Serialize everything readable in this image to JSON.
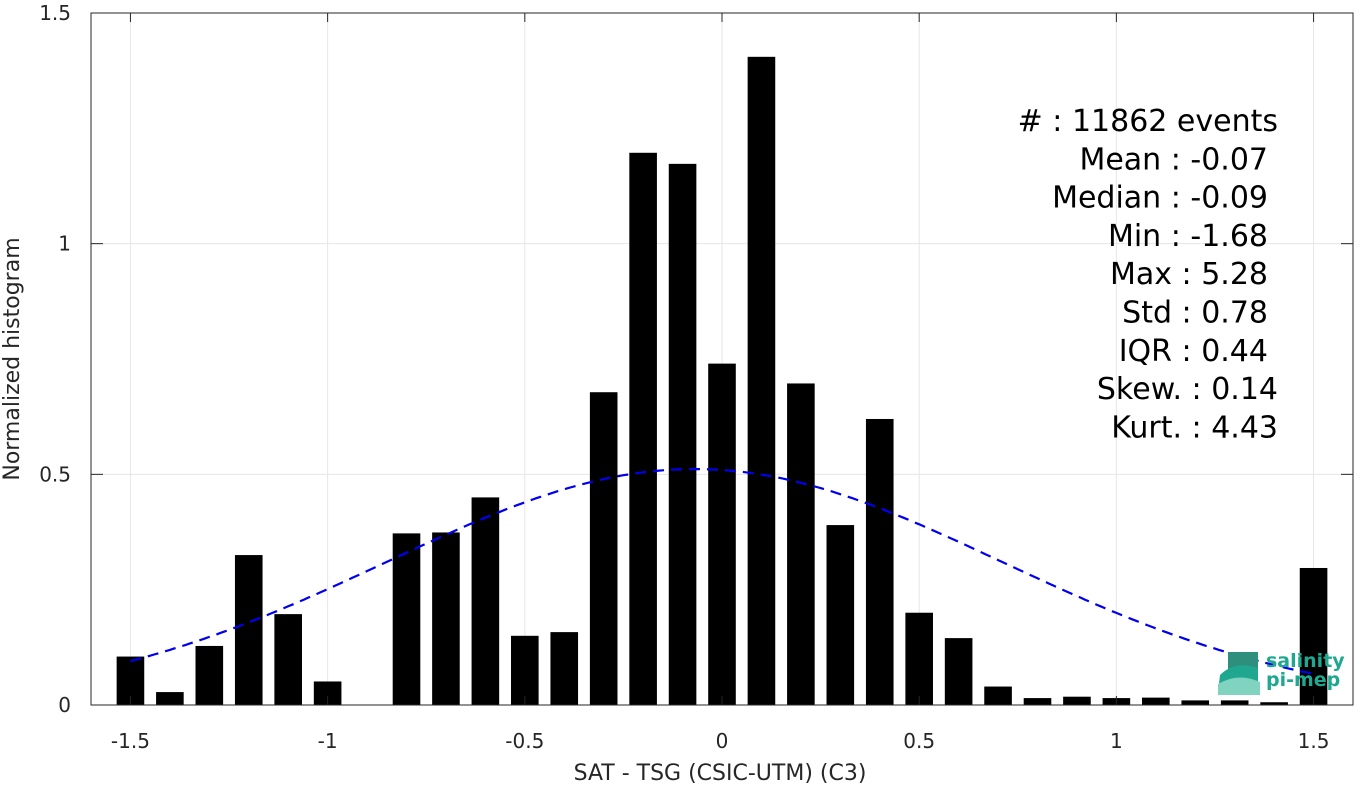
{
  "chart_data": {
    "type": "bar",
    "xlabel": "SAT - TSG (CSIC-UTM) (C3)",
    "ylabel": "Normalized histogram",
    "xlim": [
      -1.6,
      1.6
    ],
    "ylim": [
      0,
      1.5
    ],
    "xticks": [
      -1.5,
      -1,
      -0.5,
      0,
      0.5,
      1,
      1.5
    ],
    "xtick_labels": [
      "-1.5",
      "-1",
      "-0.5",
      "0",
      "0.5",
      "1",
      "1.5"
    ],
    "yticks": [
      0,
      0.5,
      1,
      1.5
    ],
    "ytick_labels": [
      "0",
      "0.5",
      "1",
      "1.5"
    ],
    "grid": true,
    "bar_color": "#000000",
    "bar_width": 0.07,
    "x": [
      -1.5,
      -1.4,
      -1.3,
      -1.2,
      -1.1,
      -1.0,
      -0.9,
      -0.8,
      -0.7,
      -0.6,
      -0.5,
      -0.4,
      -0.3,
      -0.2,
      -0.1,
      0.0,
      0.1,
      0.2,
      0.3,
      0.4,
      0.5,
      0.6,
      0.7,
      0.8,
      0.9,
      1.0,
      1.1,
      1.2,
      1.3,
      1.4,
      1.5
    ],
    "values": [
      0.105,
      0.028,
      0.128,
      0.325,
      0.197,
      0.051,
      0.0,
      0.372,
      0.374,
      0.45,
      0.15,
      0.158,
      0.678,
      1.197,
      1.173,
      0.74,
      1.405,
      0.697,
      0.39,
      0.62,
      0.2,
      0.145,
      0.04,
      0.015,
      0.018,
      0.015,
      0.016,
      0.01,
      0.01,
      0.006,
      0.297
    ],
    "fit": {
      "type": "normal",
      "mean": -0.07,
      "std": 0.78,
      "color": "#0000ee",
      "style": "dashed"
    },
    "stats_lines": [
      "#  : 11862 events",
      "Mean : -0.07",
      "Median : -0.09",
      "Min : -1.68",
      "Max : 5.28",
      "Std : 0.78",
      "IQR : 0.44",
      "Skew. : 0.14",
      "Kurt. : 4.43"
    ]
  },
  "logo": {
    "line1": "salinity",
    "line2": "pi-mep",
    "color": "#1fa88f"
  }
}
